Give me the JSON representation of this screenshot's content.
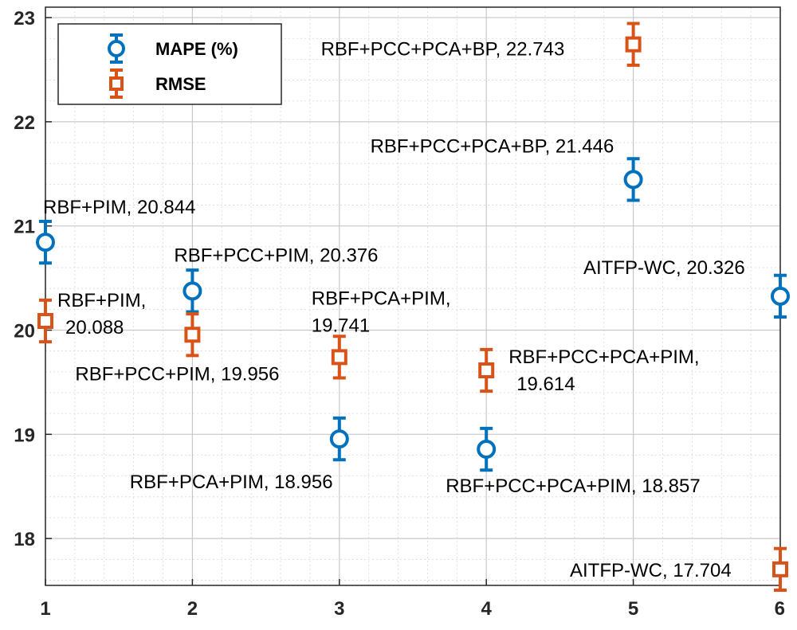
{
  "chart_data": {
    "type": "scatter",
    "title": "",
    "xlabel": "",
    "ylabel": "",
    "xlim": [
      1,
      6
    ],
    "ylim": [
      17.55,
      23.1
    ],
    "x_ticks": [
      "1",
      "2",
      "3",
      "4",
      "5",
      "6"
    ],
    "y_ticks": [
      "18",
      "19",
      "20",
      "21",
      "22",
      "23"
    ],
    "grid": true,
    "legend_position": "top-left",
    "series": [
      {
        "name": "MAPE (%)",
        "color": "#0072BD",
        "marker": "circle",
        "errorbar": 0.2,
        "points": [
          {
            "x": 1,
            "y": 20.844,
            "label": "RBF+PIM, 20.844"
          },
          {
            "x": 2,
            "y": 20.376,
            "label": "RBF+PCC+PIM, 20.376"
          },
          {
            "x": 3,
            "y": 18.956,
            "label": "RBF+PCA+PIM, 18.956"
          },
          {
            "x": 4,
            "y": 18.857,
            "label": "RBF+PCC+PCA+PIM, 18.857"
          },
          {
            "x": 5,
            "y": 21.446,
            "label": "RBF+PCC+PCA+BP, 21.446"
          },
          {
            "x": 6,
            "y": 20.326,
            "label": "AITFP-WC, 20.326"
          }
        ]
      },
      {
        "name": "RMSE",
        "color": "#D95319",
        "marker": "square",
        "errorbar": 0.2,
        "points": [
          {
            "x": 1,
            "y": 20.088,
            "label_lines": [
              "RBF+PIM,",
              "20.088"
            ]
          },
          {
            "x": 2,
            "y": 19.956,
            "label_lines": [
              "RBF+PCC+PIM, 19.956"
            ]
          },
          {
            "x": 3,
            "y": 19.741,
            "label_lines": [
              "RBF+PCA+PIM,",
              "19.741"
            ]
          },
          {
            "x": 4,
            "y": 19.614,
            "label_lines": [
              "RBF+PCC+PCA+PIM,",
              "19.614"
            ]
          },
          {
            "x": 5,
            "y": 22.743,
            "label_lines": [
              "RBF+PCC+PCA+BP, 22.743"
            ]
          },
          {
            "x": 6,
            "y": 17.704,
            "label_lines": [
              "AITFP-WC, 17.704"
            ]
          }
        ]
      }
    ]
  }
}
